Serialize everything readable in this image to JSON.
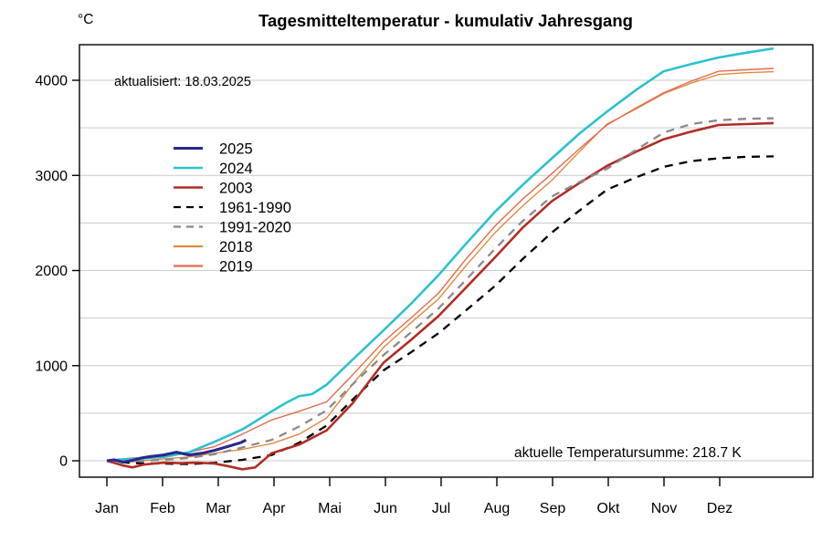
{
  "chart": {
    "title": "Tagesmitteltemperatur - kumulativ Jahresgang",
    "unit": "°C",
    "updated": "aktualisiert: 18.03.2025",
    "current_sum": "aktuelle Temperatursumme: 218.7 K"
  },
  "colors": {
    "background": "#ffffff",
    "grid": "#c9c9c9",
    "axis": "#000000",
    "series_2025": "#28288c",
    "series_2024": "#2cc1cf",
    "series_2003": "#b12d24",
    "series_1961_1990": "#000000",
    "series_1991_2020": "#8a8a8a",
    "series_2018": "#e2893b",
    "series_2019": "#e56a51"
  },
  "chart_data": {
    "type": "line",
    "title": "Tagesmitteltemperatur - kumulativ Jahresgang",
    "ylabel": "°C",
    "ylim": [
      -170,
      4370
    ],
    "y_ticks": [
      0,
      1000,
      2000,
      3000,
      4000
    ],
    "y_grid_step": 500,
    "grid": true,
    "x_tick_labels": [
      "Jan",
      "Feb",
      "Mar",
      "Apr",
      "Mai",
      "Jun",
      "Jul",
      "Aug",
      "Sep",
      "Okt",
      "Nov",
      "Dez"
    ],
    "legend_position": "upper-left-inside",
    "legend_order": [
      "2025",
      "2024",
      "2003",
      "1961-1990",
      "1991-2020",
      "2018",
      "2019"
    ],
    "draw_order": [
      "1961-1990",
      "2018",
      "2019",
      "2003",
      "1991-2020",
      "2024",
      "2025"
    ],
    "annotations": [
      "aktualisiert: 18.03.2025",
      "aktuelle Temperatursumme: 218.7 K"
    ],
    "series": [
      {
        "name": "2025",
        "style": "solid",
        "width": 3.1,
        "color": "#28288c",
        "days": [
          1,
          5,
          10,
          15,
          20,
          25,
          32,
          39,
          46,
          53,
          60,
          67,
          74,
          77
        ],
        "values": [
          0,
          10,
          -15,
          5,
          30,
          45,
          60,
          90,
          60,
          80,
          110,
          150,
          190,
          219
        ]
      },
      {
        "name": "2024",
        "style": "solid",
        "width": 2.6,
        "color": "#2cc1cf",
        "days": [
          1,
          10,
          20,
          32,
          46,
          60,
          75,
          91,
          99,
          106,
          113,
          121,
          135,
          152,
          167,
          182,
          197,
          213,
          228,
          244,
          259,
          274,
          290,
          305,
          320,
          335,
          350,
          365
        ],
        "values": [
          0,
          15,
          25,
          40,
          90,
          200,
          330,
          520,
          610,
          680,
          700,
          800,
          1060,
          1370,
          1650,
          1950,
          2280,
          2620,
          2900,
          3180,
          3440,
          3670,
          3900,
          4095,
          4170,
          4240,
          4290,
          4335
        ]
      },
      {
        "name": "2003",
        "style": "solid",
        "width": 2.6,
        "color": "#b12d24",
        "days": [
          1,
          10,
          15,
          21,
          32,
          41,
          50,
          60,
          68,
          75,
          82,
          91,
          106,
          121,
          135,
          152,
          167,
          182,
          197,
          213,
          228,
          244,
          259,
          274,
          290,
          305,
          320,
          335,
          350,
          365
        ],
        "values": [
          0,
          -50,
          -70,
          -40,
          -20,
          -25,
          -20,
          -30,
          -60,
          -90,
          -70,
          80,
          170,
          320,
          600,
          1030,
          1270,
          1520,
          1820,
          2140,
          2450,
          2730,
          2920,
          3100,
          3250,
          3380,
          3460,
          3530,
          3540,
          3550
        ]
      },
      {
        "name": "1961-1990",
        "style": "dashed",
        "width": 2.3,
        "color": "#000000",
        "days": [
          1,
          15,
          32,
          46,
          60,
          75,
          91,
          106,
          121,
          135,
          152,
          167,
          182,
          197,
          213,
          228,
          244,
          259,
          274,
          290,
          305,
          320,
          335,
          350,
          365
        ],
        "values": [
          0,
          -25,
          -30,
          -35,
          -20,
          10,
          60,
          190,
          370,
          640,
          950,
          1140,
          1340,
          1580,
          1840,
          2120,
          2400,
          2630,
          2850,
          2980,
          3090,
          3150,
          3180,
          3195,
          3200
        ]
      },
      {
        "name": "1991-2020",
        "style": "dashed",
        "width": 2.3,
        "color": "#8a8a8a",
        "days": [
          1,
          15,
          32,
          46,
          60,
          75,
          91,
          106,
          121,
          135,
          152,
          167,
          182,
          197,
          213,
          228,
          244,
          259,
          274,
          290,
          305,
          320,
          335,
          350,
          365
        ],
        "values": [
          0,
          -5,
          10,
          30,
          70,
          140,
          220,
          360,
          530,
          800,
          1110,
          1350,
          1600,
          1900,
          2230,
          2520,
          2780,
          2930,
          3070,
          3270,
          3450,
          3540,
          3580,
          3595,
          3600
        ]
      },
      {
        "name": "2018",
        "style": "solid",
        "width": 1.4,
        "color": "#e2893b",
        "days": [
          1,
          15,
          32,
          46,
          60,
          75,
          91,
          106,
          121,
          135,
          152,
          167,
          182,
          197,
          213,
          228,
          244,
          259,
          274,
          290,
          305,
          320,
          335,
          350,
          365
        ],
        "values": [
          0,
          -10,
          20,
          40,
          80,
          120,
          180,
          280,
          450,
          800,
          1190,
          1450,
          1700,
          2050,
          2400,
          2680,
          2950,
          3250,
          3540,
          3700,
          3860,
          3970,
          4060,
          4080,
          4090
        ]
      },
      {
        "name": "2019",
        "style": "solid",
        "width": 1.4,
        "color": "#e56a51",
        "days": [
          1,
          15,
          32,
          46,
          60,
          75,
          91,
          106,
          121,
          135,
          152,
          167,
          182,
          197,
          213,
          228,
          244,
          259,
          274,
          290,
          305,
          320,
          335,
          350,
          365
        ],
        "values": [
          0,
          30,
          40,
          90,
          150,
          280,
          430,
          520,
          620,
          900,
          1250,
          1500,
          1760,
          2120,
          2470,
          2750,
          3020,
          3280,
          3530,
          3710,
          3870,
          3990,
          4095,
          4110,
          4125
        ]
      }
    ]
  }
}
